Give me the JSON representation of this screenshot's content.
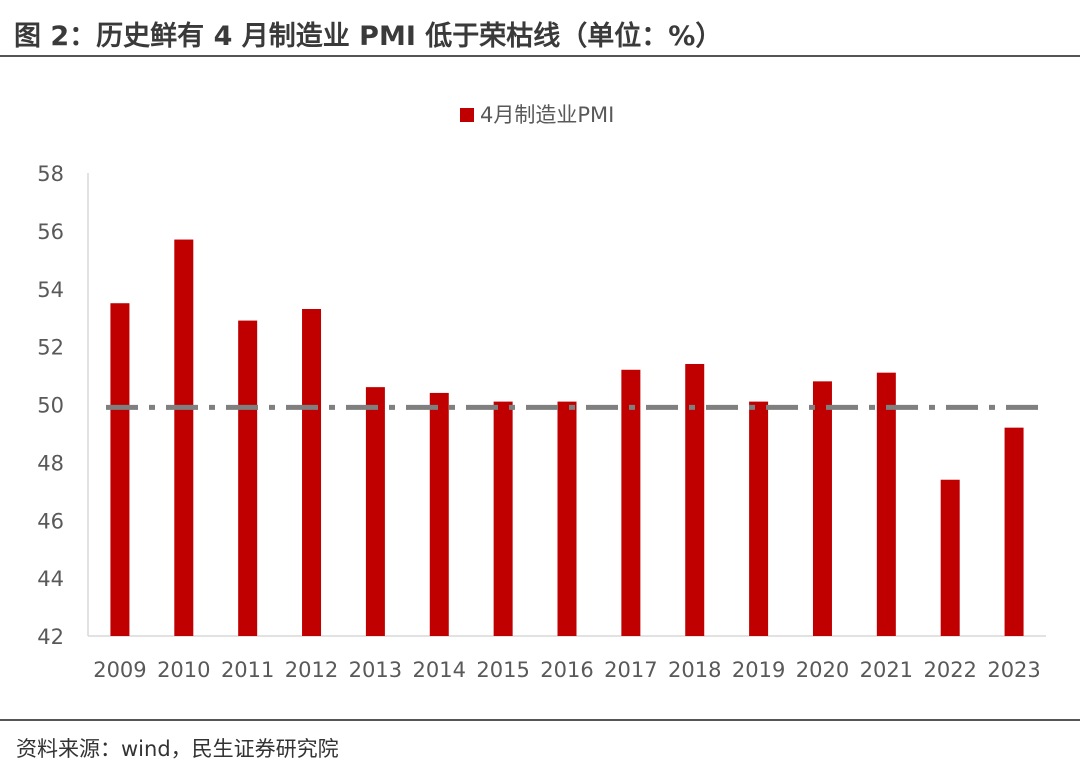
{
  "figure": {
    "title": "图 2：历史鲜有 4 月制造业 PMI 低于荣枯线（单位：%）",
    "source": "资料来源：wind，民生证券研究院"
  },
  "colors": {
    "bar": "#C00000",
    "reference_line": "#7F7F7F",
    "axis": "#D9D9D9",
    "text": "#595959"
  },
  "chart_data": {
    "type": "bar",
    "categories": [
      "2009",
      "2010",
      "2011",
      "2012",
      "2013",
      "2014",
      "2015",
      "2016",
      "2017",
      "2018",
      "2019",
      "2020",
      "2021",
      "2022",
      "2023"
    ],
    "series": [
      {
        "name": "4月制造业PMI",
        "values": [
          53.5,
          55.7,
          52.9,
          53.3,
          50.6,
          50.4,
          50.1,
          50.1,
          51.2,
          51.4,
          50.1,
          50.8,
          51.1,
          47.4,
          49.2
        ]
      }
    ],
    "ylim": [
      42,
      58
    ],
    "yticks": [
      42,
      44,
      46,
      48,
      50,
      52,
      54,
      56,
      58
    ],
    "reference_line": {
      "value": 49.9,
      "style": "dash-dot"
    },
    "legend_position": "top-center",
    "grid": false,
    "xlabel": "",
    "ylabel": ""
  }
}
